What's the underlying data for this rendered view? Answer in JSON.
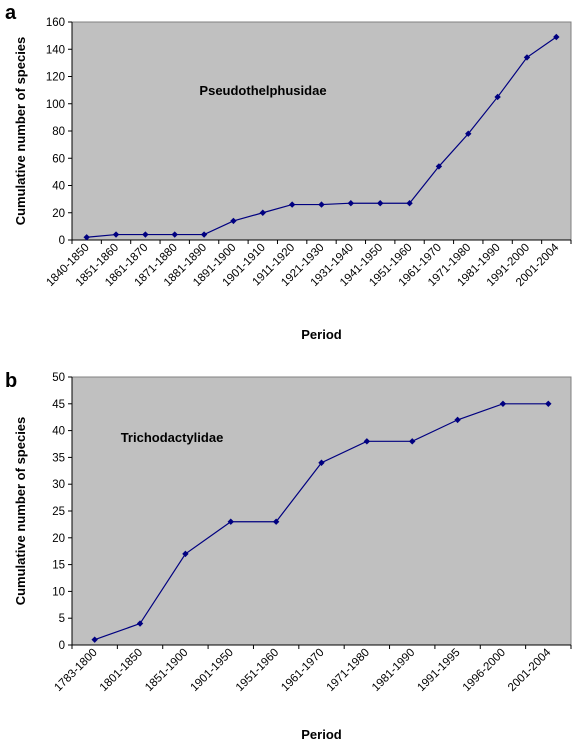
{
  "chart_data": [
    {
      "type": "line",
      "panel_label": "a",
      "annotation": "Pseudothelphusidae",
      "xlabel": "Period",
      "ylabel": "Cumulative number of species",
      "ylim": [
        0,
        160
      ],
      "yticks": [
        0,
        20,
        40,
        60,
        80,
        100,
        120,
        140,
        160
      ],
      "grid": false,
      "background": "#c0c0c0",
      "line_color": "#000080",
      "categories": [
        "1840-1850",
        "1851-1860",
        "1861-1870",
        "1871-1880",
        "1881-1890",
        "1891-1900",
        "1901-1910",
        "1911-1920",
        "1921-1930",
        "1931-1940",
        "1941-1950",
        "1951-1960",
        "1961-1970",
        "1971-1980",
        "1981-1990",
        "1991-2000",
        "2001-2004"
      ],
      "values": [
        2,
        4,
        4,
        4,
        4,
        14,
        20,
        26,
        26,
        27,
        27,
        27,
        54,
        78,
        105,
        134,
        149
      ]
    },
    {
      "type": "line",
      "panel_label": "b",
      "annotation": "Trichodactylidae",
      "xlabel": "Period",
      "ylabel": "Cumulative number of species",
      "ylim": [
        0,
        50
      ],
      "yticks": [
        0,
        5,
        10,
        15,
        20,
        25,
        30,
        35,
        40,
        45,
        50
      ],
      "grid": false,
      "background": "#c0c0c0",
      "line_color": "#000080",
      "categories": [
        "1783-1800",
        "1801-1850",
        "1851-1900",
        "1901-1950",
        "1951-1960",
        "1961-1970",
        "1971-1980",
        "1981-1990",
        "1991-1995",
        "1996-2000",
        "2001-2004"
      ],
      "values": [
        1,
        4,
        17,
        23,
        23,
        34,
        38,
        38,
        42,
        45,
        45
      ]
    }
  ]
}
